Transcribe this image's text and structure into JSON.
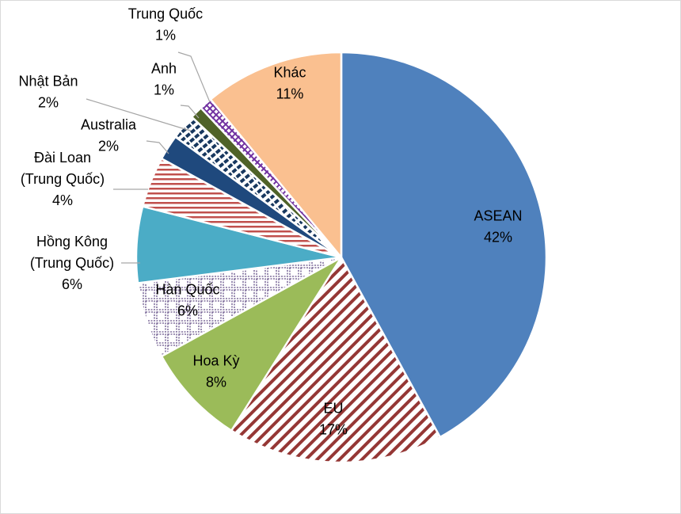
{
  "chart_data": {
    "type": "pie",
    "title": "",
    "start_angle_deg": 0,
    "direction": "clockwise",
    "slices": [
      {
        "label_lines": [
          "ASEAN"
        ],
        "value": 42,
        "value_label": "42%",
        "color": "#4f81bd",
        "pattern": "solid",
        "label_inside": true
      },
      {
        "label_lines": [
          "EU"
        ],
        "value": 17,
        "value_label": "17%",
        "color": "#953735",
        "pattern": "wide-diagonal",
        "label_inside": true
      },
      {
        "label_lines": [
          "Hoa Kỳ"
        ],
        "value": 8,
        "value_label": "8%",
        "color": "#9bbb59",
        "pattern": "solid",
        "label_inside": true
      },
      {
        "label_lines": [
          "Hàn Quốc"
        ],
        "value": 6,
        "value_label": "6%",
        "color": "#7f6e9c",
        "pattern": "dotted-grid",
        "label_inside": true
      },
      {
        "label_lines": [
          "Hồng Kông",
          "(Trung Quốc)"
        ],
        "value": 6,
        "value_label": "6%",
        "color": "#4bacc6",
        "pattern": "solid",
        "label_inside": false
      },
      {
        "label_lines": [
          "Đài Loan",
          "(Trung Quốc)"
        ],
        "value": 4,
        "value_label": "4%",
        "color": "#c0504d",
        "pattern": "horizontal-dash",
        "label_inside": false
      },
      {
        "label_lines": [
          "Australia"
        ],
        "value": 2,
        "value_label": "2%",
        "color": "#1f497d",
        "pattern": "solid",
        "label_inside": false
      },
      {
        "label_lines": [
          "Nhật Bản"
        ],
        "value": 2,
        "value_label": "2%",
        "color": "#17375e",
        "pattern": "dotted-diagonal",
        "label_inside": false
      },
      {
        "label_lines": [
          "Anh"
        ],
        "value": 1,
        "value_label": "1%",
        "color": "#4f6228",
        "pattern": "solid",
        "label_inside": false
      },
      {
        "label_lines": [
          "Trung Quốc"
        ],
        "value": 1,
        "value_label": "1%",
        "color": "#7030a0",
        "pattern": "checker",
        "label_inside": false
      },
      {
        "label_lines": [
          "Khác"
        ],
        "value": 11,
        "value_label": "11%",
        "color": "#fac090",
        "pattern": "solid",
        "label_inside": true
      }
    ]
  }
}
